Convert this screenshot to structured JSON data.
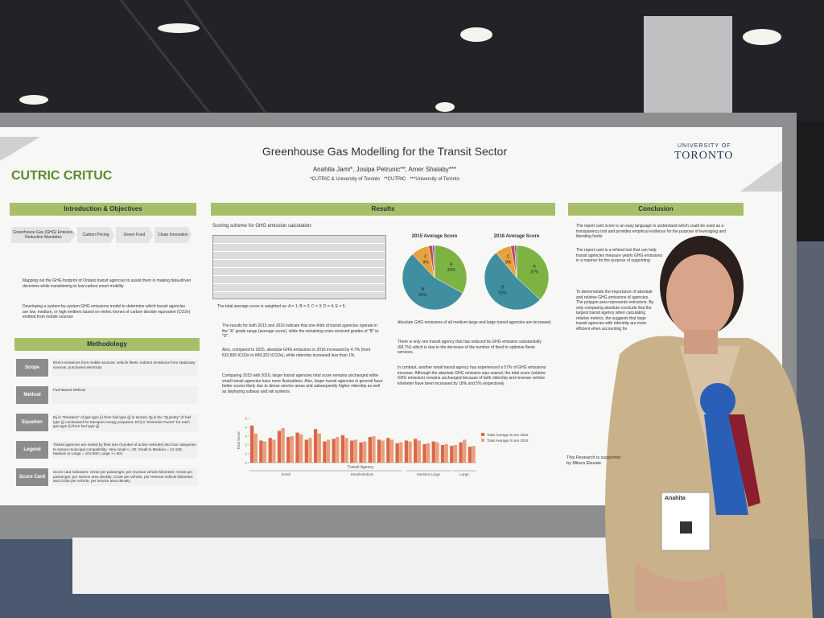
{
  "header": {
    "title": "Greenhouse Gas Modelling for the Transit Sector",
    "authors": "Anahita Jami*, Josipa Petrunic**, Amer Shalaby***",
    "affiliations": "*CUTRIC & University of Toronto   **CUTRIC   ***University of Toronto",
    "university_top": "UNIVERSITY OF",
    "university": "TORONTO",
    "logo": "CUTRIC CRITUC"
  },
  "intro": {
    "heading": "Introduction & Objectives",
    "flow": [
      "Greenhouse Gas (GHG) Emission Reduction Mandates",
      "Carbon Pricing",
      "Green Fund",
      "Clean Innovation"
    ],
    "bullets": [
      "Mapping out the GHG footprint of Ontario transit agencies to assist them in making data-driven decisions while transitioning to low-carbon smart mobility",
      "Developing a system-by-system GHG emissions model to determine which transit agencies are low, medium, or high emitters based on metric tonnes of carbon dioxide equivalent (CO2e) emitted from mobile sources"
    ]
  },
  "methodology": {
    "heading": "Methodology",
    "rows": [
      {
        "label": "Scope",
        "text": "Direct emissions from mobile sources: vehicle fleets. Indirect emissions from stationary sources: purchased electricity"
      },
      {
        "label": "Method",
        "text": "Fuel-Based Method"
      },
      {
        "label": "Equation",
        "text": "Eij is \"Emission\" of gas type (i) from fuel type (j) in tonnes; Qj is the \"Quantity\" of fuel type (j) combusted for transport energy purposes; EFij is \"Emission Factor\" for each gas type (i) from fuel type (j)"
      },
      {
        "label": "Legend",
        "text": "Transit agencies are sorted by fleet size (number of active vehicles) into four categories to ensure municipal compatibility: Very small <= 20; Small to Medium = 21-100; Medium to Large = 101-500; Large >= 501"
      },
      {
        "label": "Score Card",
        "text": "Score card indicators: CO2e per passenger, per revenue vehicle kilometer; CO2e per passenger, per service area density; CO2e per vehicle, per revenue vehicle kilometre; and CO2e per vehicle, per service area density"
      }
    ]
  },
  "results": {
    "heading": "Results",
    "intro": "Scoring scheme for GHG emission calculation:",
    "weights": "The total average score is weighted as: A = 1; B = 2; C = 3; D = 4; E = 5.",
    "bullets": [
      "The results for both 2015 and 2016 indicate that one-third of transit agencies operate in the \"A\" grade range (average score), while the remaining ones received grades of \"B\" to \"D\".",
      "Also, compared to 2015, absolute GHG emissions in 2016 increased by 4.7% (from 810,836 tCO2e to 849,322 tCO2e), while ridership increased less than 1%.",
      "Comparing 2015 with 2016, larger transit agencies total score remains unchanged while small transit agencies have more fluctuations. Also, larger transit agencies in general have better scores likely due to dense service areas and subsequently higher ridership as well as deploying subway and rail systems."
    ],
    "right_bullets": [
      "Absolute GHG emissions of all medium-large and large transit agencies are increased.",
      "There is only one transit agency that has reduced its GHG emission substantially (68.7%) which is due to the decrease of the number of fixed to optimize fleets services.",
      "In contrast, another small transit agency has experienced a 57% of GHG emissions increase. Although the absolute GHG emission was soared, the total score (relative GHG emission) remains unchanged because of both ridership and revenue vehicle kilometer have been increased by 18% and 5% respectively."
    ]
  },
  "pies": [
    {
      "type": "pie",
      "title": "2015 Average Score",
      "categories": [
        "A",
        "B",
        "C",
        "D",
        "E"
      ],
      "values": [
        33,
        55,
        9,
        2,
        1
      ],
      "value_labels": [
        "33%",
        "55%",
        "9%",
        "2%",
        "1%"
      ],
      "colors": [
        "#7cb342",
        "#3f8fa0",
        "#e6a23c",
        "#c0504d",
        "#8064a2"
      ]
    },
    {
      "type": "pie",
      "title": "2016 Average Score",
      "categories": [
        "A",
        "B",
        "C",
        "D",
        "E"
      ],
      "values": [
        37,
        52,
        8,
        2,
        1
      ],
      "value_labels": [
        "37%",
        "52%",
        "8%",
        "2%",
        "1%"
      ],
      "colors": [
        "#7cb342",
        "#3f8fa0",
        "#e6a23c",
        "#c0504d",
        "#8064a2"
      ]
    }
  ],
  "bar_chart": {
    "type": "bar",
    "y_label": "Total Score",
    "x_label": "Transit Agency",
    "groups": [
      "Small",
      "Small-Medium",
      "Medium-Large",
      "Large"
    ],
    "ylim": [
      0,
      5
    ],
    "yticks": [
      0,
      1,
      2,
      3,
      4,
      5
    ],
    "series": [
      {
        "name": "Total Average Score 2015",
        "color": "#d9684a",
        "values": [
          4.2,
          2.5,
          2.8,
          3.6,
          2.9,
          3.4,
          2.6,
          3.8,
          2.4,
          2.7,
          3.1,
          2.5,
          2.3,
          2.9,
          2.6,
          2.8,
          2.2,
          2.5,
          2.7,
          2.1,
          2.4,
          2.0,
          1.9,
          2.3,
          1.8
        ]
      },
      {
        "name": "Total Average Score 2016",
        "color": "#e9a07a",
        "values": [
          3.3,
          2.4,
          2.6,
          3.9,
          3.0,
          3.2,
          2.8,
          3.3,
          2.6,
          2.9,
          2.8,
          2.6,
          2.4,
          3.0,
          2.5,
          2.6,
          2.3,
          2.4,
          2.5,
          2.2,
          2.3,
          2.1,
          2.0,
          2.6,
          1.9
        ]
      }
    ]
  },
  "conclusion": {
    "heading": "Conclusion",
    "bullets": [
      "The report card score is an easy language to understand which could be used as a transparency tool and provides empirical evidence for the purpose of leveraging and literating funds",
      "The report card is a refined tool that can help transit agencies measure yearly GHG emissions in a manner for the purpose of supporting",
      "To demonstrate the importance of absolute and relative GHG emissions of agencies. The polygon area represents emissions. By only comparing absolute conclude that the largest transit agency when calculating relative metrics, the suggests that large transit agencies with ridership are more efficient when accounting for"
    ],
    "footer": "This Research is supported by Mitacs Elevate."
  },
  "badge": {
    "name": "Anahita"
  }
}
